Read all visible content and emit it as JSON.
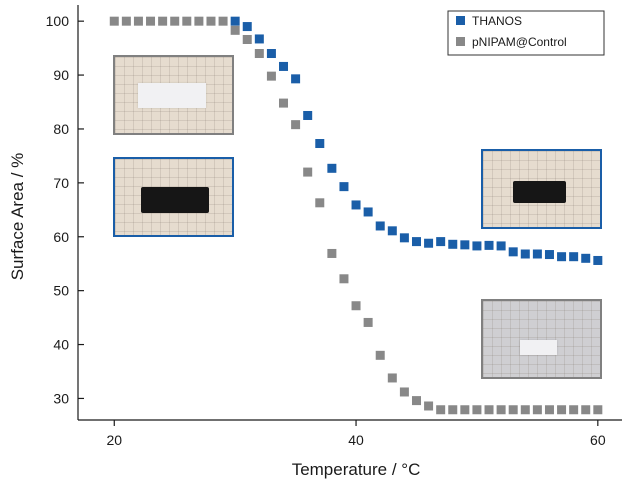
{
  "chart_data": {
    "type": "scatter",
    "xlabel": "Temperature / °C",
    "ylabel": "Surface Area / %",
    "xlim": [
      17,
      62
    ],
    "ylim": [
      26,
      103
    ],
    "xticks": [
      20,
      40,
      60
    ],
    "yticks": [
      30,
      40,
      50,
      60,
      70,
      80,
      90,
      100
    ],
    "grid": false,
    "legend_position": "top-right",
    "series": [
      {
        "name": "THANOS",
        "color": "#1a5ea8",
        "x": [
          30,
          31,
          32,
          33,
          34,
          35,
          36,
          37,
          38,
          39,
          40,
          41,
          42,
          43,
          44,
          45,
          46,
          47,
          48,
          49,
          50,
          51,
          52,
          53,
          54,
          55,
          56,
          57,
          58,
          59,
          60
        ],
        "y": [
          100,
          99,
          96.7,
          94,
          91.6,
          89.3,
          82.5,
          77.3,
          72.7,
          69.3,
          65.9,
          64.6,
          62,
          61.1,
          59.8,
          59.1,
          58.8,
          59.1,
          58.6,
          58.5,
          58.3,
          58.4,
          58.3,
          57.2,
          56.8,
          56.8,
          56.7,
          56.3,
          56.3,
          56,
          55.6
        ]
      },
      {
        "name": "pNIPAM@Control",
        "color": "#888888",
        "x": [
          20,
          21,
          22,
          23,
          24,
          25,
          26,
          27,
          28,
          29,
          30,
          31,
          32,
          33,
          34,
          35,
          36,
          37,
          38,
          39,
          40,
          41,
          42,
          43,
          44,
          45,
          46,
          47,
          48,
          49,
          50,
          51,
          52,
          53,
          54,
          55,
          56,
          57,
          58,
          59,
          60
        ],
        "y": [
          100,
          100,
          100,
          100,
          100,
          100,
          100,
          100,
          100,
          100,
          98.3,
          96.6,
          94,
          89.8,
          84.8,
          80.8,
          72,
          66.3,
          56.9,
          52.2,
          47.2,
          44.1,
          38,
          33.8,
          31.2,
          29.6,
          28.6,
          27.9,
          27.9,
          27.9,
          27.9,
          27.9,
          27.9,
          27.9,
          27.9,
          27.9,
          27.9,
          27.9,
          27.9,
          27.9,
          27.9
        ]
      }
    ]
  },
  "insets": [
    {
      "name": "photo-control-low-temp",
      "sample": "white",
      "frame": "#808080"
    },
    {
      "name": "photo-thanos-low-temp",
      "sample": "black",
      "frame": "#1a5ea8"
    },
    {
      "name": "photo-thanos-high-temp",
      "sample": "black",
      "frame": "#1a5ea8"
    },
    {
      "name": "photo-control-high-temp",
      "sample": "white",
      "frame": "#808080"
    }
  ]
}
